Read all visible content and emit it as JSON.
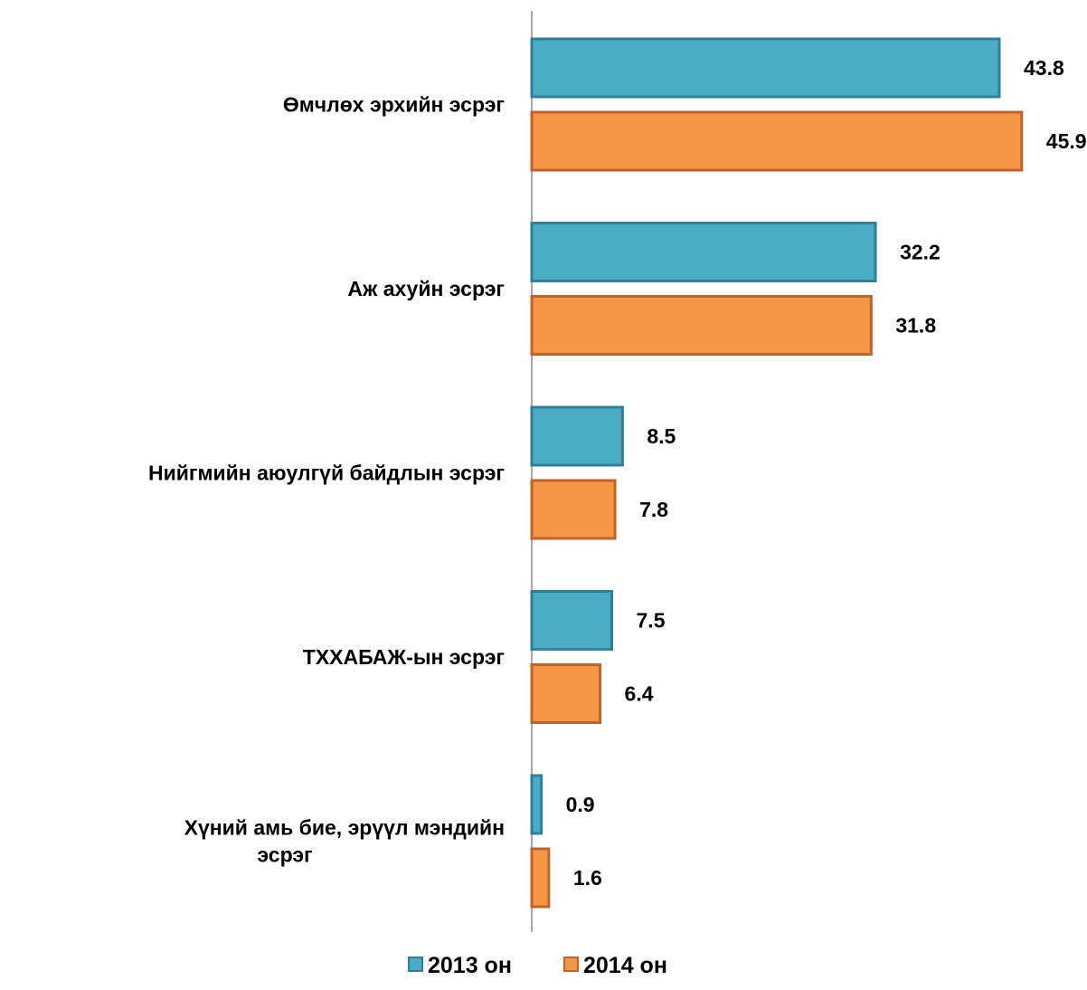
{
  "chart_data": {
    "type": "bar",
    "orientation": "horizontal",
    "categories": [
      [
        "Өмчлөх эрхийн эсрэг"
      ],
      [
        "Аж ахуйн эсрэг"
      ],
      [
        "Нийгмийн аюулгүй байдлын эсрэг"
      ],
      [
        "ТХХАБАЖ-ын эсрэг"
      ],
      [
        "Хүний амь бие, эрүүл мэндийн",
        "эсрэг"
      ]
    ],
    "series": [
      {
        "name": "2013 он",
        "color": "#4bacc6",
        "stroke": "#2f7f98",
        "values": [
          43.8,
          32.2,
          8.5,
          7.5,
          0.9
        ],
        "labels": [
          "43.8",
          "32.2",
          "8.5",
          "7.5",
          "0.9"
        ]
      },
      {
        "name": "2014 он",
        "color": "#f79646",
        "stroke": "#c0622a",
        "values": [
          45.9,
          31.8,
          7.8,
          6.4,
          1.6
        ],
        "labels": [
          "45.9",
          "31.8",
          "7.8",
          "6.4",
          "1.6"
        ]
      }
    ],
    "xlim": [
      0,
      46
    ],
    "grid": false,
    "legend_position": "bottom"
  }
}
